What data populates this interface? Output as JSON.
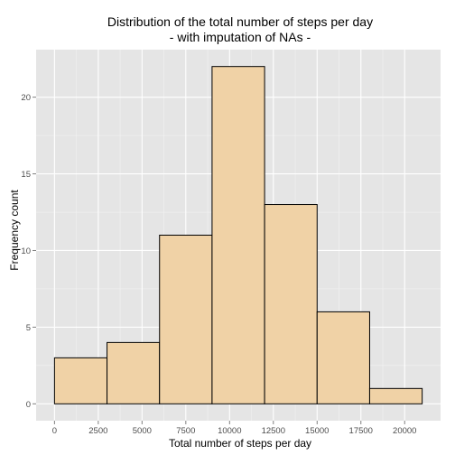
{
  "chart_data": {
    "type": "bar",
    "title": "Distribution of the total number of steps per day",
    "subtitle": "- with imputation of NAs -",
    "xlabel": "Total number of steps per day",
    "ylabel": "Frequency count",
    "bins": [
      {
        "start": 0,
        "end": 3000,
        "count": 3
      },
      {
        "start": 3000,
        "end": 6000,
        "count": 4
      },
      {
        "start": 6000,
        "end": 9000,
        "count": 11
      },
      {
        "start": 9000,
        "end": 12000,
        "count": 22
      },
      {
        "start": 12000,
        "end": 15000,
        "count": 13
      },
      {
        "start": 15000,
        "end": 18000,
        "count": 6
      },
      {
        "start": 18000,
        "end": 21000,
        "count": 1
      }
    ],
    "xticks": [
      "0",
      "2500",
      "5000",
      "7500",
      "10000",
      "12500",
      "15000",
      "17500",
      "20000"
    ],
    "xtick_values": [
      0,
      2500,
      5000,
      7500,
      10000,
      12500,
      15000,
      17500,
      20000
    ],
    "yticks": [
      "0",
      "5",
      "10",
      "15",
      "20"
    ],
    "ytick_values": [
      0,
      5,
      10,
      15,
      20
    ],
    "xlim": [
      -1050,
      22050
    ],
    "ylim": [
      -1.1,
      23.1
    ],
    "grid": true,
    "colors": {
      "panel": "#e5e5e5",
      "grid_major": "#ffffff",
      "grid_minor": "#f2f2f2",
      "bar_fill": "#f0d2a6",
      "bar_stroke": "#000000"
    }
  }
}
